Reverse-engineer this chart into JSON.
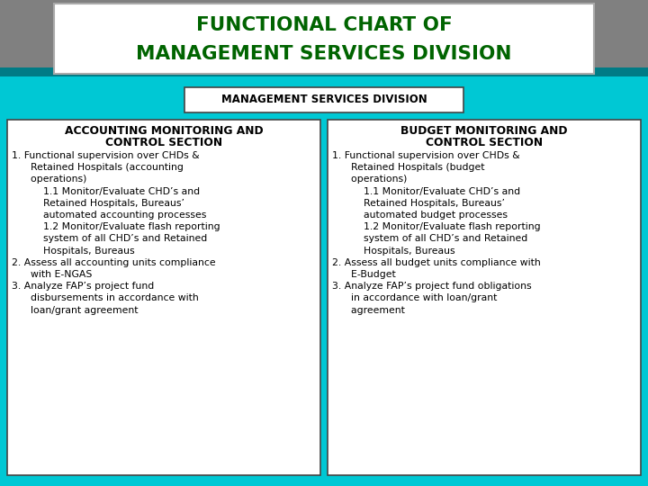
{
  "title_line1": "FUNCTIONAL CHART OF",
  "title_line2": "MANAGEMENT SERVICES DIVISION",
  "title_color": "#006400",
  "title_bg": "#ffffff",
  "header_text": "MANAGEMENT SERVICES DIVISION",
  "header_bg": "#ffffff",
  "cyan_color": "#00c8d4",
  "teal_color": "#007b85",
  "outer_bg_color": "#808080",
  "left_box_title": "ACCOUNTING MONITORING AND\n        CONTROL SECTION",
  "left_box_content": "1. Functional supervision over CHDs &\n        Retained Hospitals (accounting\n        operations)\n            1.1 Monitor/Evaluate CHD’s and\n            Retained Hospitals, Bureaus’\n            automated accounting processes\n            1.2 Monitor/Evaluate flash reporting\n            system of all CHD’s and Retained\n            Hospitals, Bureaus\n2. Assess all accounting units compliance\n        with E-NGAS\n3. Analyze FAP’s project fund\n        disbursements in accordance with\n        loan/grant agreement",
  "right_box_title": "BUDGET MONITORING AND\n        CONTROL SECTION",
  "right_box_content": "1. Functional supervision over CHDs &\n        Retained Hospitals (budget\n        operations)\n            1.1 Monitor/Evaluate CHD’s and\n            Retained Hospitals, Bureaus’\n            automated budget processes\n            1.2 Monitor/Evaluate flash reporting\n            system of all CHD’s and Retained\n            Hospitals, Bureaus\n2. Assess all budget units compliance with\n        E-Budget\n3. Analyze FAP’s project fund obligations\n        in accordance with loan/grant\n        agreement",
  "box_bg": "#ffffff",
  "box_text_color": "#000000",
  "header_text_color": "#000000",
  "coin_bg": "#a0a0a0"
}
